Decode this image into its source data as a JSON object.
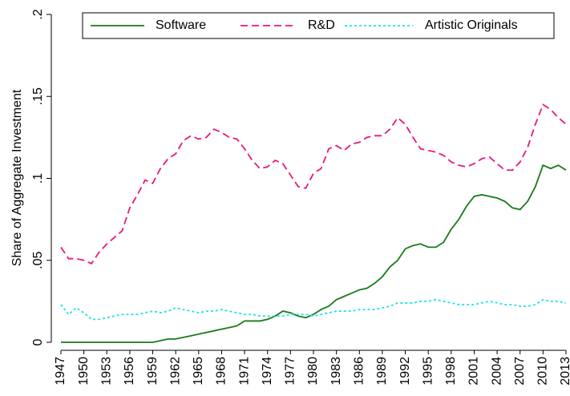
{
  "chart_data": {
    "type": "line",
    "y_label": "Share of Aggregate Investment",
    "x": [
      1947,
      1948,
      1949,
      1950,
      1951,
      1952,
      1953,
      1954,
      1955,
      1956,
      1957,
      1958,
      1959,
      1960,
      1961,
      1962,
      1963,
      1964,
      1965,
      1966,
      1967,
      1968,
      1969,
      1970,
      1971,
      1972,
      1973,
      1974,
      1975,
      1976,
      1977,
      1978,
      1979,
      1980,
      1981,
      1982,
      1983,
      1984,
      1985,
      1986,
      1987,
      1988,
      1989,
      1990,
      1991,
      1992,
      1993,
      1994,
      1995,
      1996,
      1997,
      1998,
      1999,
      2000,
      2001,
      2002,
      2003,
      2004,
      2005,
      2006,
      2007,
      2008,
      2009,
      2010,
      2011,
      2012,
      2013
    ],
    "series": [
      {
        "name": "Software",
        "color": "#1a7a1a",
        "style": "solid",
        "values": [
          0,
          0,
          0,
          0,
          0,
          0,
          0,
          0,
          0,
          0,
          0,
          0,
          0,
          0.001,
          0.002,
          0.002,
          0.003,
          0.004,
          0.005,
          0.006,
          0.007,
          0.008,
          0.009,
          0.01,
          0.013,
          0.013,
          0.013,
          0.014,
          0.016,
          0.019,
          0.018,
          0.016,
          0.015,
          0.017,
          0.02,
          0.022,
          0.026,
          0.028,
          0.03,
          0.032,
          0.033,
          0.036,
          0.04,
          0.046,
          0.05,
          0.057,
          0.059,
          0.06,
          0.058,
          0.058,
          0.061,
          0.069,
          0.075,
          0.083,
          0.089,
          0.09,
          0.089,
          0.088,
          0.086,
          0.082,
          0.081,
          0.086,
          0.095,
          0.108,
          0.106,
          0.108,
          0.105
        ]
      },
      {
        "name": "R&D",
        "color": "#e8177d",
        "style": "dashed",
        "values": [
          0.058,
          0.051,
          0.051,
          0.05,
          0.048,
          0.055,
          0.06,
          0.064,
          0.068,
          0.082,
          0.09,
          0.099,
          0.097,
          0.106,
          0.112,
          0.115,
          0.123,
          0.126,
          0.124,
          0.125,
          0.13,
          0.128,
          0.125,
          0.124,
          0.118,
          0.111,
          0.106,
          0.107,
          0.111,
          0.109,
          0.102,
          0.095,
          0.094,
          0.103,
          0.106,
          0.118,
          0.12,
          0.117,
          0.121,
          0.122,
          0.125,
          0.126,
          0.126,
          0.13,
          0.137,
          0.133,
          0.125,
          0.118,
          0.117,
          0.116,
          0.114,
          0.11,
          0.108,
          0.107,
          0.109,
          0.112,
          0.113,
          0.109,
          0.105,
          0.105,
          0.11,
          0.119,
          0.133,
          0.145,
          0.142,
          0.137,
          0.133
        ]
      },
      {
        "name": "Artistic Originals",
        "color": "#1fe3e3",
        "style": "dotted",
        "values": [
          0.023,
          0.017,
          0.021,
          0.018,
          0.014,
          0.014,
          0.015,
          0.016,
          0.017,
          0.017,
          0.017,
          0.018,
          0.019,
          0.018,
          0.019,
          0.021,
          0.02,
          0.019,
          0.018,
          0.019,
          0.019,
          0.02,
          0.019,
          0.018,
          0.017,
          0.017,
          0.016,
          0.016,
          0.016,
          0.016,
          0.017,
          0.017,
          0.017,
          0.016,
          0.017,
          0.018,
          0.019,
          0.019,
          0.019,
          0.02,
          0.02,
          0.02,
          0.021,
          0.022,
          0.024,
          0.024,
          0.024,
          0.025,
          0.025,
          0.026,
          0.025,
          0.024,
          0.023,
          0.023,
          0.023,
          0.024,
          0.025,
          0.024,
          0.023,
          0.023,
          0.022,
          0.022,
          0.023,
          0.026,
          0.025,
          0.025,
          0.024
        ]
      }
    ],
    "xlim": [
      1947,
      2013
    ],
    "xticks": [
      1947,
      1950,
      1953,
      1956,
      1959,
      1962,
      1965,
      1968,
      1971,
      1974,
      1977,
      1980,
      1983,
      1986,
      1989,
      1992,
      1995,
      1998,
      2001,
      2004,
      2007,
      2010,
      2013
    ],
    "ylim": [
      0,
      0.2
    ],
    "yticks": [
      0,
      {
        "value": 0.05,
        "label": ".05"
      },
      {
        "value": 0.1,
        "label": ".1"
      },
      {
        "value": 0.15,
        "label": ".15"
      },
      {
        "value": 0.2,
        "label": ".2"
      }
    ],
    "grid": false
  }
}
